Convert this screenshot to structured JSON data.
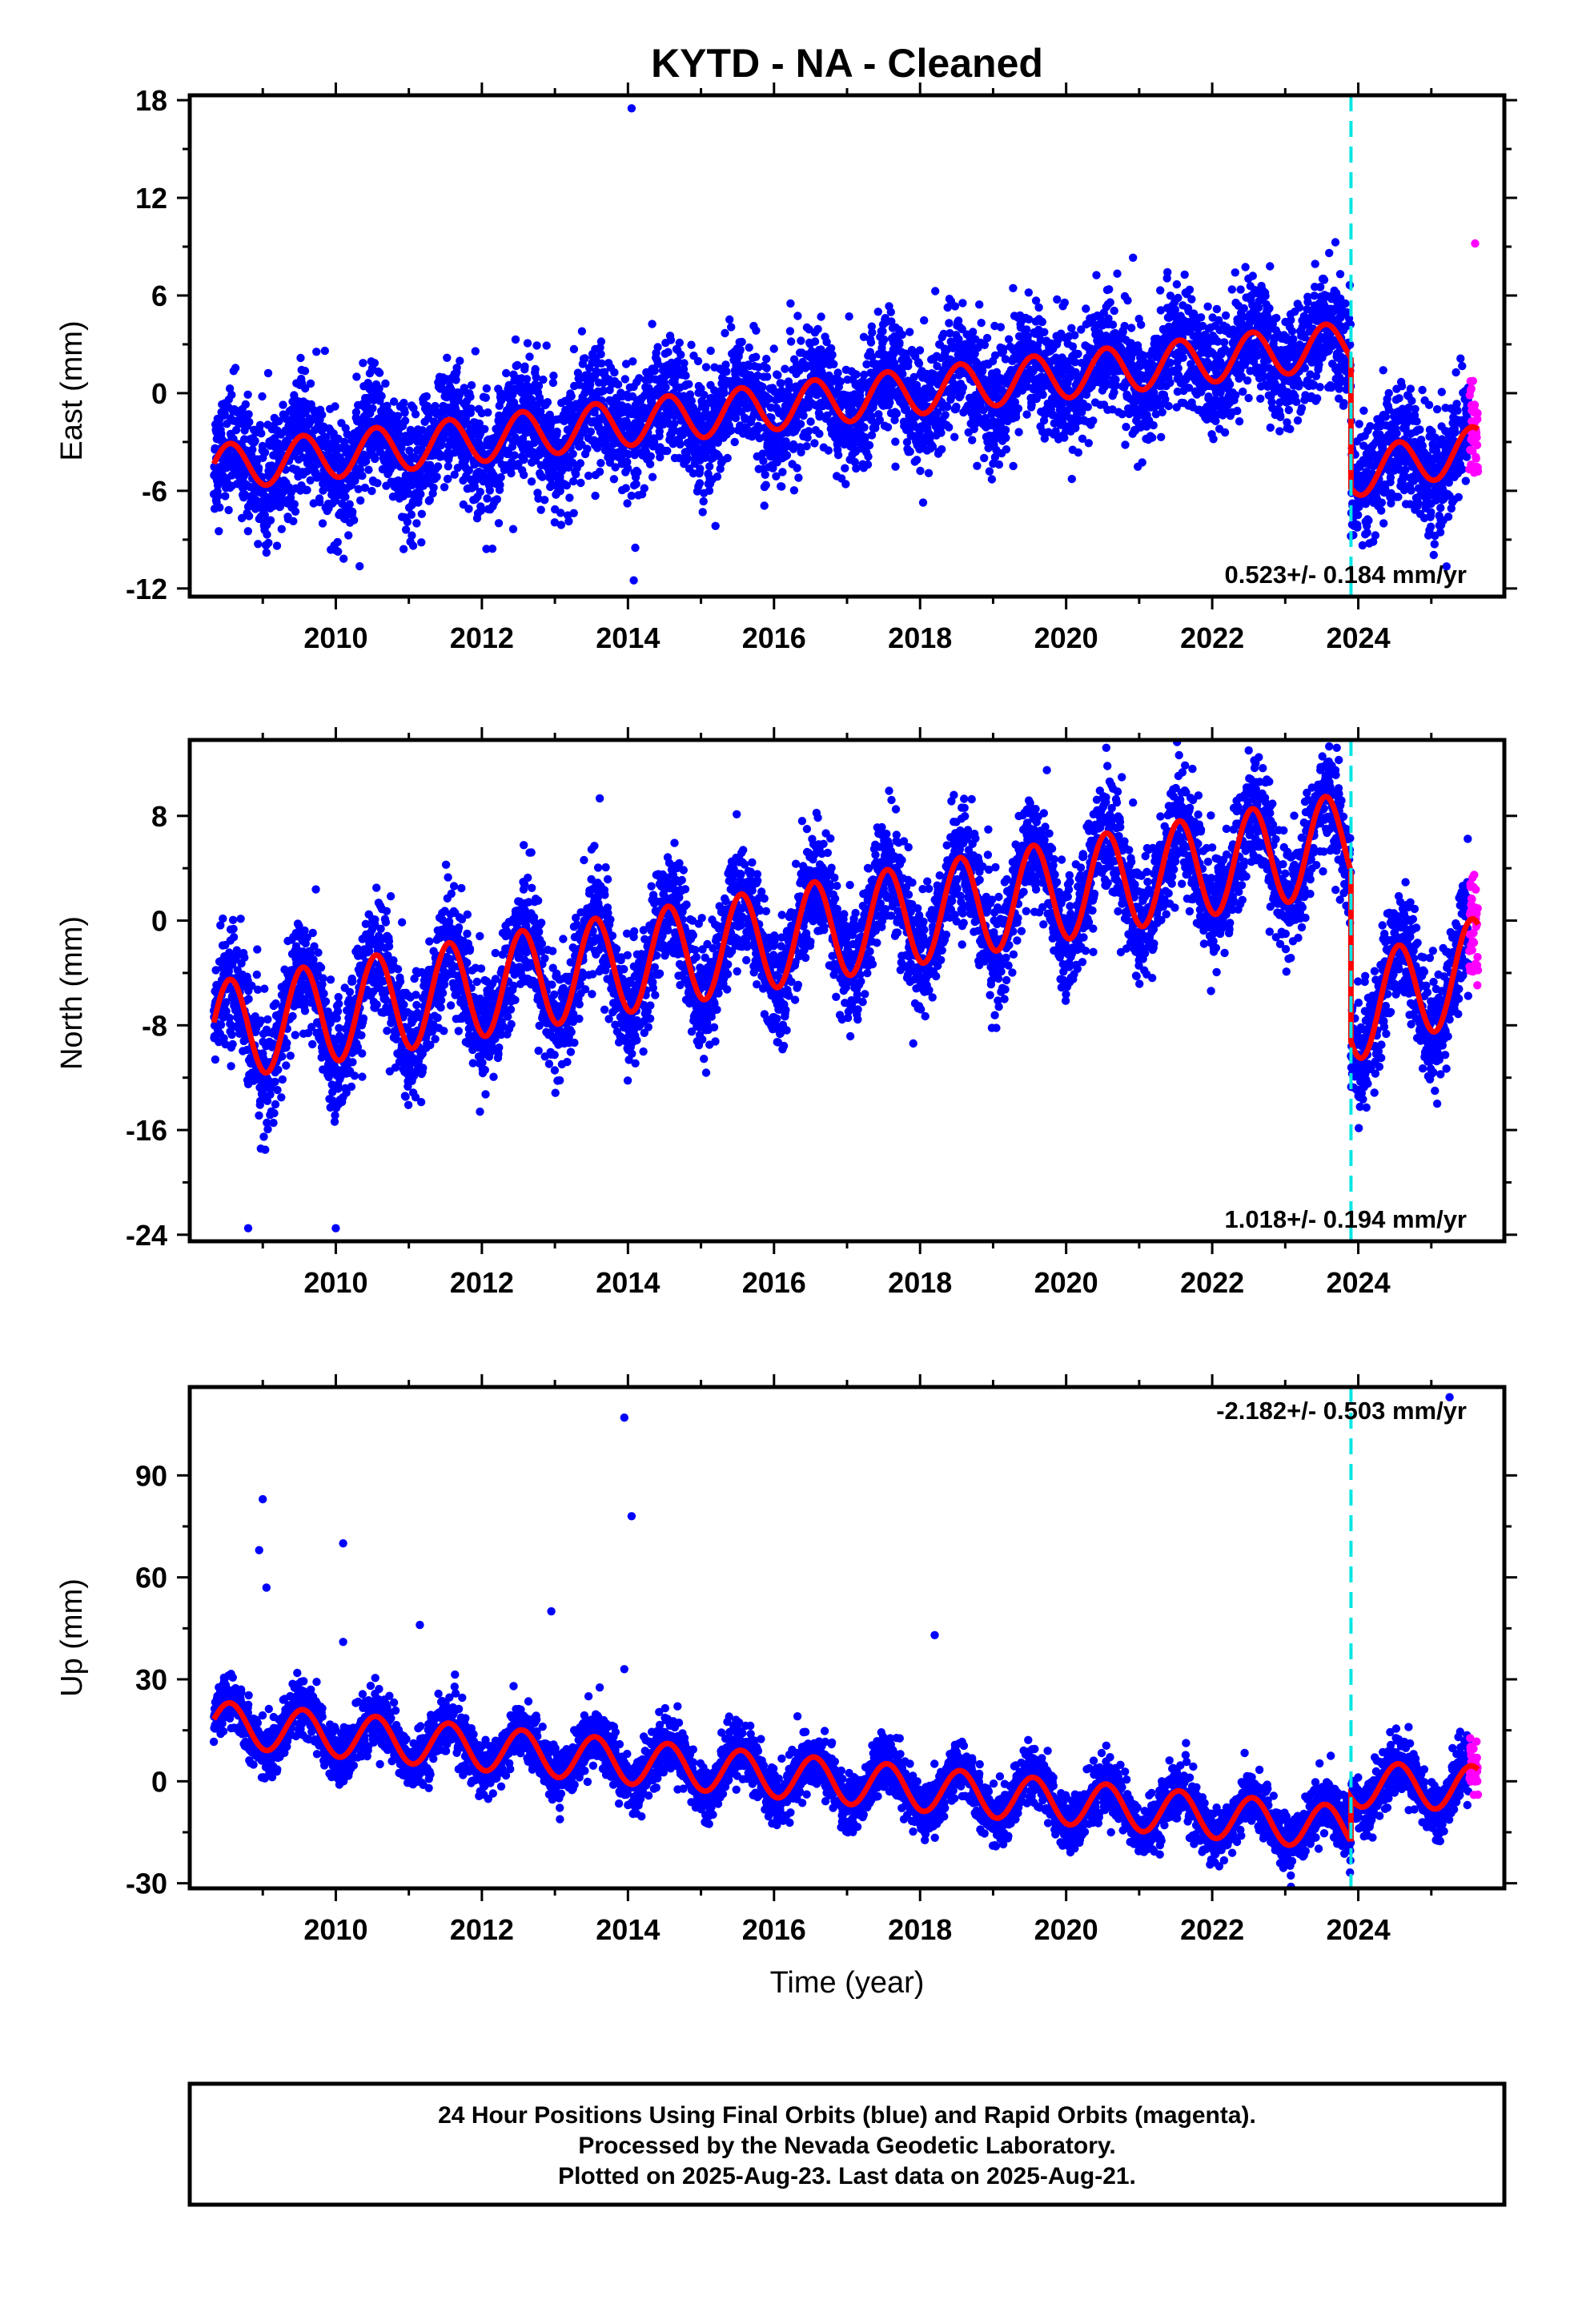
{
  "figure": {
    "title": "KYTD  - NA - Cleaned",
    "xlabel": "Time (year)",
    "footer_lines": [
      "24 Hour Positions Using Final Orbits (blue) and Rapid Orbits (magenta).",
      "Processed by the Nevada Geodetic Laboratory.",
      "Plotted on 2025-Aug-23. Last data on 2025-Aug-21."
    ]
  },
  "colors": {
    "final_orbits": "#0000ff",
    "rapid_orbits": "#ff00ff",
    "model": "#ff0000",
    "equipment_change": "#00e5e5",
    "frame": "#000000"
  },
  "chart_data": [
    {
      "type": "scatter",
      "name": "east",
      "ylabel": "East (mm)",
      "rate_text": "0.523+/- 0.184 mm/yr",
      "xlim": [
        2008.0,
        2026.0
      ],
      "ylim": [
        -12.5,
        18.3
      ],
      "xticks": [
        "2010",
        "2012",
        "2014",
        "2016",
        "2018",
        "2020",
        "2022",
        "2024"
      ],
      "xtick_values": [
        2010,
        2012,
        2014,
        2016,
        2018,
        2020,
        2022,
        2024
      ],
      "yticks": [
        "18",
        "12",
        "6",
        "0",
        "-6",
        "-12"
      ],
      "ytick_values": [
        18,
        12,
        6,
        0,
        -6,
        -12
      ],
      "break_year": 2023.9,
      "data_start": 2008.33,
      "rapid_start": 2025.52,
      "data_end": 2025.64,
      "model": {
        "trend_before": [
          [
            2008.33,
            -4.6
          ],
          [
            2023.9,
            3.0
          ]
        ],
        "trend_after": [
          [
            2023.9,
            -5.0
          ],
          [
            2025.64,
            -3.4
          ]
        ],
        "annual_amplitude_mm": 1.4,
        "scatter_sigma_mm": 1.8
      },
      "outliers": [
        [
          2014.05,
          17.5
        ],
        [
          2014.08,
          -11.5
        ],
        [
          2014.1,
          -9.5
        ],
        [
          2025.6,
          9.2
        ],
        [
          2009.85,
          2.6
        ]
      ]
    },
    {
      "type": "scatter",
      "name": "north",
      "ylabel": "North (mm)",
      "rate_text": "1.018+/- 0.194 mm/yr",
      "xlim": [
        2008.0,
        2026.0
      ],
      "ylim": [
        -24.5,
        13.8
      ],
      "xticks": [
        "2010",
        "2012",
        "2014",
        "2016",
        "2018",
        "2020",
        "2022",
        "2024"
      ],
      "xtick_values": [
        2010,
        2012,
        2014,
        2016,
        2018,
        2020,
        2022,
        2024
      ],
      "yticks": [
        "8",
        "0",
        "-8",
        "-16",
        "-24"
      ],
      "ytick_values": [
        8,
        0,
        -8,
        -16,
        -24
      ],
      "break_year": 2023.9,
      "data_start": 2008.33,
      "rapid_start": 2025.52,
      "data_end": 2025.64,
      "model": {
        "trend_before": [
          [
            2008.33,
            -8.5
          ],
          [
            2023.9,
            6.0
          ]
        ],
        "trend_after": [
          [
            2023.9,
            -7.0
          ],
          [
            2025.64,
            -3.5
          ]
        ],
        "annual_amplitude_mm": 3.8,
        "scatter_sigma_mm": 2.2
      },
      "outliers": [
        [
          2008.8,
          -23.5
        ],
        [
          2010.0,
          -23.5
        ],
        [
          2020.55,
          13.2
        ],
        [
          2022.5,
          13.0
        ]
      ]
    },
    {
      "type": "scatter",
      "name": "up",
      "ylabel": "Up (mm)",
      "rate_text": "-2.182+/- 0.503 mm/yr",
      "xlim": [
        2008.0,
        2026.0
      ],
      "ylim": [
        -31.5,
        116.0
      ],
      "xticks": [
        "2010",
        "2012",
        "2014",
        "2016",
        "2018",
        "2020",
        "2022",
        "2024"
      ],
      "xtick_values": [
        2010,
        2012,
        2014,
        2016,
        2018,
        2020,
        2022,
        2024
      ],
      "yticks": [
        "90",
        "60",
        "30",
        "0",
        "-30"
      ],
      "ytick_values": [
        90,
        60,
        30,
        0,
        -30
      ],
      "break_year": 2023.9,
      "data_start": 2008.33,
      "rapid_start": 2025.52,
      "data_end": 2025.64,
      "model": {
        "trend_before": [
          [
            2008.33,
            17.0
          ],
          [
            2023.9,
            -14.0
          ]
        ],
        "trend_after": [
          [
            2023.9,
            -1.0
          ],
          [
            2025.64,
            -2.0
          ]
        ],
        "annual_amplitude_mm": 6.5,
        "scatter_sigma_mm": 4.0
      },
      "outliers": [
        [
          2008.95,
          68.0
        ],
        [
          2009.0,
          83.0
        ],
        [
          2009.05,
          57.0
        ],
        [
          2010.1,
          70.0
        ],
        [
          2010.1,
          41.0
        ],
        [
          2011.15,
          46.0
        ],
        [
          2012.95,
          50.0
        ],
        [
          2013.95,
          107.0
        ],
        [
          2014.05,
          78.0
        ],
        [
          2013.95,
          33.0
        ],
        [
          2018.2,
          43.0
        ],
        [
          2025.25,
          113.0
        ]
      ]
    }
  ]
}
